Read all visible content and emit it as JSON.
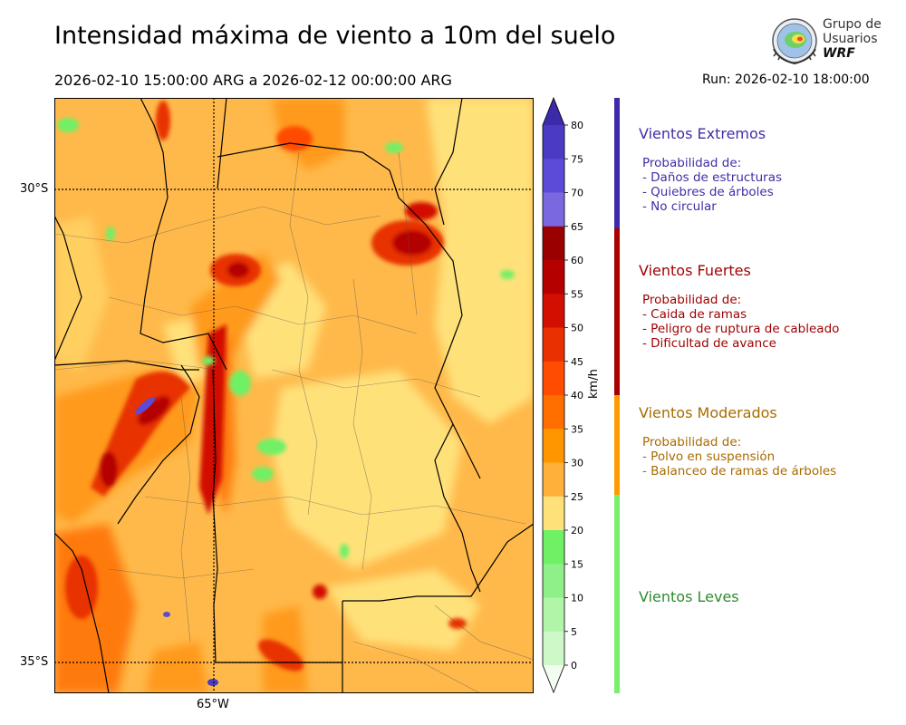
{
  "header": {
    "title": "Intensidad máxima de viento a 10m del suelo",
    "period": "2026-02-10 15:00:00 ARG  a  2026-02-12 00:00:00 ARG",
    "run": "Run: 2026-02-10 18:00:00"
  },
  "logo": {
    "line1": "Grupo de",
    "line2": "Usuarios",
    "line3": "WRF"
  },
  "map_axes": {
    "lat_labels": [
      "30°S",
      "35°S"
    ],
    "lon_labels": [
      "65°W"
    ]
  },
  "colorbar": {
    "unit": "km/h",
    "ticks": [
      "80",
      "75",
      "70",
      "65",
      "60",
      "55",
      "50",
      "45",
      "40",
      "35",
      "30",
      "25",
      "20",
      "15",
      "10",
      "5",
      "0"
    ],
    "colors": [
      "#3b2aa9",
      "#4a3ac4",
      "#5b4bd6",
      "#7a68e0",
      "#9b0000",
      "#b50000",
      "#d20f00",
      "#e83000",
      "#ff4c00",
      "#ff6f00",
      "#ff9600",
      "#ffb13a",
      "#ffe17a",
      "#6ff065",
      "#8ff08a",
      "#b0f5a8",
      "#cef8c8",
      "#e8fbe4"
    ]
  },
  "categories": [
    {
      "title": "Vientos Extremos",
      "color": "#3f2ea6",
      "lines": [
        "Probabilidad de:",
        "- Daños de estructuras",
        "- Quiebres de árboles",
        "- No circular"
      ]
    },
    {
      "title": "Vientos Fuertes",
      "color": "#9e0000",
      "lines": [
        "Probabilidad de:",
        "- Caida de ramas",
        "- Peligro de ruptura de cableado",
        "- Dificultad de avance"
      ]
    },
    {
      "title": "Vientos Moderados",
      "color": "#a86b00",
      "lines": [
        "Probabilidad de:",
        "- Polvo en suspensión",
        "- Balanceo de ramas de árboles"
      ]
    },
    {
      "title": "Vientos Leves",
      "color": "#2e8b2e",
      "lines": []
    }
  ]
}
